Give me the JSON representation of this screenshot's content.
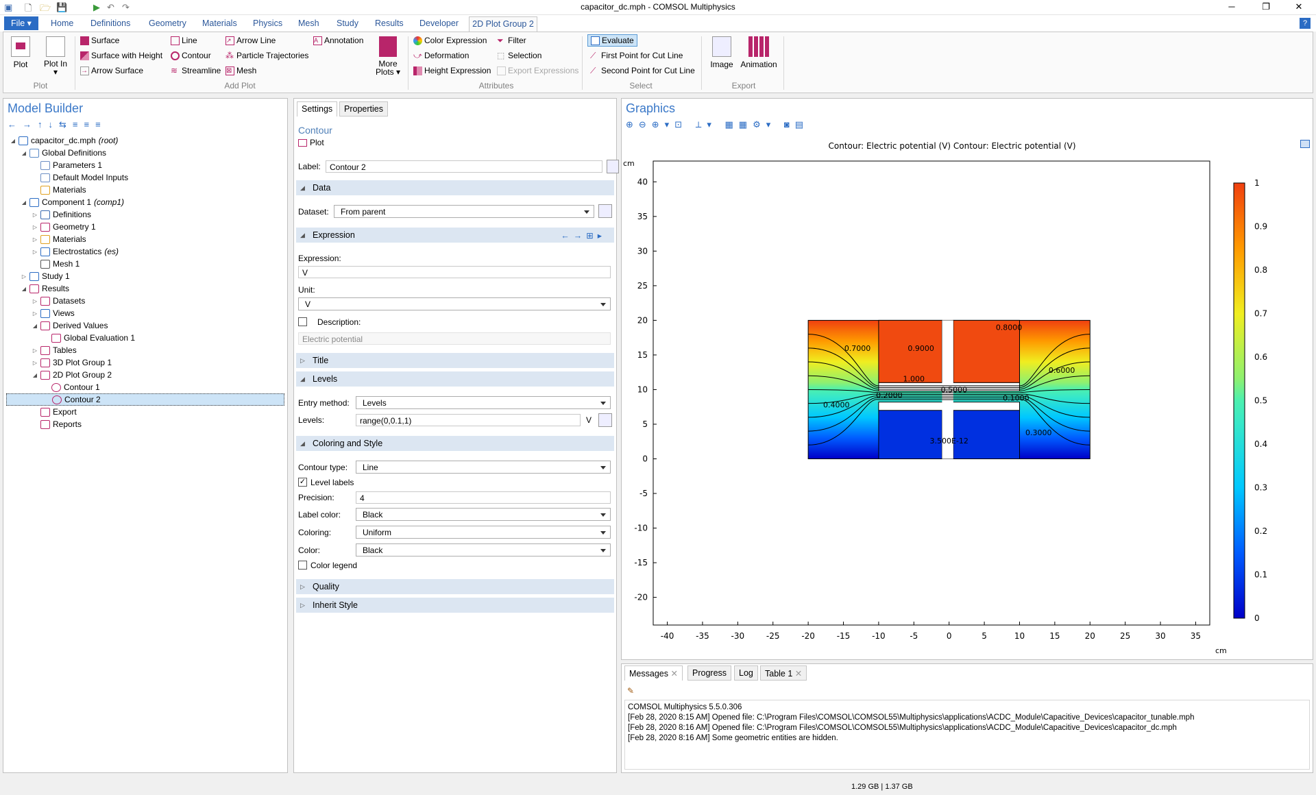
{
  "window": {
    "title": "capacitor_dc.mph - COMSOL Multiphysics"
  },
  "ribbon_tabs": {
    "file": "File ▾",
    "home": "Home",
    "definitions": "Definitions",
    "geometry": "Geometry",
    "materials": "Materials",
    "physics": "Physics",
    "mesh": "Mesh",
    "study": "Study",
    "results": "Results",
    "developer": "Developer",
    "active": "2D Plot Group 2"
  },
  "ribbon": {
    "plot": "Plot",
    "plot_in": "Plot In ▾",
    "g_plot": "Plot",
    "surface": "Surface",
    "line": "Line",
    "arrow_line": "Arrow Line",
    "annotation": "Annotation",
    "surface_height": "Surface with Height",
    "contour": "Contour",
    "particle_traj": "Particle Trajectories",
    "arrow_surface": "Arrow Surface",
    "streamline": "Streamline",
    "mesh": "Mesh",
    "more_plots": "More Plots ▾",
    "g_add": "Add Plot",
    "color_expr": "Color Expression",
    "filter": "Filter",
    "deformation": "Deformation",
    "selection": "Selection",
    "height_expr": "Height Expression",
    "export_expr": "Export Expressions",
    "g_attr": "Attributes",
    "evaluate": "Evaluate",
    "first_pt": "First Point for Cut Line",
    "second_pt": "Second Point for Cut Line",
    "g_select": "Select",
    "image": "Image",
    "animation": "Animation",
    "g_export": "Export"
  },
  "model_builder": {
    "title": "Model Builder",
    "items": [
      {
        "label": "capacitor_dc.mph",
        "tag": "(root)"
      },
      {
        "label": "Global Definitions"
      },
      {
        "label": "Parameters 1"
      },
      {
        "label": "Default Model Inputs"
      },
      {
        "label": "Materials"
      },
      {
        "label": "Component 1",
        "tag": "(comp1)"
      },
      {
        "label": "Definitions"
      },
      {
        "label": "Geometry 1"
      },
      {
        "label": "Materials"
      },
      {
        "label": "Electrostatics",
        "tag": "(es)"
      },
      {
        "label": "Mesh 1"
      },
      {
        "label": "Study 1"
      },
      {
        "label": "Results"
      },
      {
        "label": "Datasets"
      },
      {
        "label": "Views"
      },
      {
        "label": "Derived Values"
      },
      {
        "label": "Global Evaluation 1"
      },
      {
        "label": "Tables"
      },
      {
        "label": "3D Plot Group 1"
      },
      {
        "label": "2D Plot Group 2"
      },
      {
        "label": "Contour 1"
      },
      {
        "label": "Contour 2"
      },
      {
        "label": "Export"
      },
      {
        "label": "Reports"
      }
    ]
  },
  "settings": {
    "tab_settings": "Settings",
    "tab_properties": "Properties",
    "heading": "Contour",
    "plot_btn": "Plot",
    "label_lbl": "Label:",
    "label_val": "Contour 2",
    "sec_data": "Data",
    "dataset_lbl": "Dataset:",
    "dataset_val": "From parent",
    "sec_expression": "Expression",
    "expression_lbl": "Expression:",
    "expression_val": "V",
    "unit_lbl": "Unit:",
    "unit_val": "V",
    "description_lbl": "Description:",
    "description_val": "Electric potential",
    "sec_title": "Title",
    "sec_levels": "Levels",
    "entry_lbl": "Entry method:",
    "entry_val": "Levels",
    "levels_lbl": "Levels:",
    "levels_val": "range(0,0.1,1)",
    "levels_unit": "V",
    "sec_coloring": "Coloring and Style",
    "ctype_lbl": "Contour type:",
    "ctype_val": "Line",
    "level_labels": "Level labels",
    "precision_lbl": "Precision:",
    "precision_val": "4",
    "labelcolor_lbl": "Label color:",
    "labelcolor_val": "Black",
    "coloring_lbl": "Coloring:",
    "coloring_val": "Uniform",
    "color_lbl": "Color:",
    "color_val": "Black",
    "color_legend": "Color legend",
    "sec_quality": "Quality",
    "sec_inherit": "Inherit Style"
  },
  "graphics": {
    "title": "Graphics",
    "plot_title": "Contour: Electric potential (V)  Contour: Electric potential (V)",
    "unit_y": "cm",
    "unit_x": "cm"
  },
  "chart_data": {
    "type": "contour",
    "title": "Contour: Electric potential (V)  Contour: Electric potential (V)",
    "xlim": [
      -42,
      37
    ],
    "ylim": [
      -24,
      43
    ],
    "xticks": [
      -40,
      -35,
      -30,
      -25,
      -20,
      -15,
      -10,
      -5,
      0,
      5,
      10,
      15,
      20,
      25,
      30,
      35
    ],
    "yticks": [
      40,
      35,
      30,
      25,
      20,
      15,
      10,
      5,
      0,
      -5,
      -10,
      -15,
      -20
    ],
    "domain": [
      -20,
      0,
      20,
      20
    ],
    "contour_labels": [
      {
        "text": "0.7000",
        "x": -13,
        "y": 16
      },
      {
        "text": "0.9000",
        "x": -4,
        "y": 16
      },
      {
        "text": "0.8000",
        "x": 8.5,
        "y": 19
      },
      {
        "text": "0.6000",
        "x": 16,
        "y": 12.8
      },
      {
        "text": "1.000",
        "x": -5,
        "y": 11.6
      },
      {
        "text": "0.5000",
        "x": 0.7,
        "y": 10
      },
      {
        "text": "0.4000",
        "x": -16,
        "y": 7.8
      },
      {
        "text": "0.2000",
        "x": -8.5,
        "y": 9.2
      },
      {
        "text": "0.1000",
        "x": 9.5,
        "y": 8.8
      },
      {
        "text": "0.3000",
        "x": 12.7,
        "y": 3.8
      },
      {
        "text": "3.500E-12",
        "x": 0,
        "y": 2.6
      }
    ],
    "colorbar": {
      "ticks": [
        "1",
        "0.9",
        "0.8",
        "0.7",
        "0.6",
        "0.5",
        "0.4",
        "0.3",
        "0.2",
        "0.1",
        "0"
      ],
      "range": [
        0,
        1
      ]
    }
  },
  "messages": {
    "tab_messages": "Messages",
    "tab_progress": "Progress",
    "tab_log": "Log",
    "tab_table": "Table 1",
    "lines": [
      "COMSOL Multiphysics 5.5.0.306",
      "[Feb 28, 2020 8:15 AM] Opened file: C:\\Program Files\\COMSOL\\COMSOL55\\Multiphysics\\applications\\ACDC_Module\\Capacitive_Devices\\capacitor_tunable.mph",
      "[Feb 28, 2020 8:16 AM] Opened file: C:\\Program Files\\COMSOL\\COMSOL55\\Multiphysics\\applications\\ACDC_Module\\Capacitive_Devices\\capacitor_dc.mph",
      "[Feb 28, 2020 8:16 AM] Some geometric entities are hidden."
    ]
  },
  "status": {
    "memory": "1.29 GB | 1.37 GB"
  }
}
